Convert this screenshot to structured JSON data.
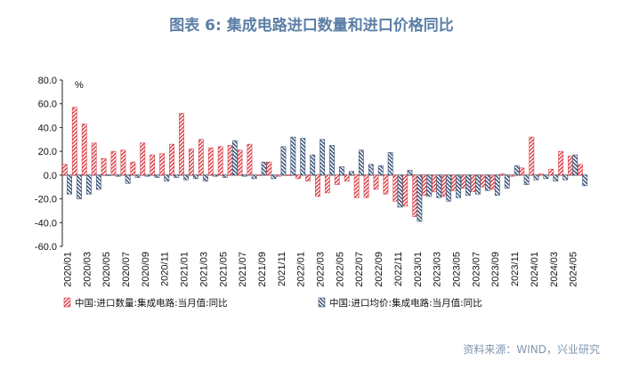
{
  "title": "图表 6:    集成电路进口数量和进口价格同比",
  "source": "资料来源：WIND，兴业研究",
  "chart_data": {
    "type": "bar",
    "unit": "%",
    "ylim": [
      -60,
      80
    ],
    "yticks": [
      "80.0",
      "60.0",
      "40.0",
      "20.0",
      "0.0",
      "-20.0",
      "-40.0",
      "-60.0"
    ],
    "categories": [
      "2020/01",
      "2020/02",
      "2020/03",
      "2020/04",
      "2020/05",
      "2020/06",
      "2020/07",
      "2020/08",
      "2020/09",
      "2020/10",
      "2020/11",
      "2020/12",
      "2021/01",
      "2021/02",
      "2021/03",
      "2021/04",
      "2021/05",
      "2021/06",
      "2021/07",
      "2021/08",
      "2021/09",
      "2021/10",
      "2021/11",
      "2021/12",
      "2022/01",
      "2022/02",
      "2022/03",
      "2022/04",
      "2022/05",
      "2022/06",
      "2022/07",
      "2022/08",
      "2022/09",
      "2022/10",
      "2022/11",
      "2022/12",
      "2023/01",
      "2023/02",
      "2023/03",
      "2023/04",
      "2023/05",
      "2023/06",
      "2023/07",
      "2023/08",
      "2023/09",
      "2023/10",
      "2023/11",
      "2023/12",
      "2024/01",
      "2024/02",
      "2024/03",
      "2024/04",
      "2024/05",
      "2024/06"
    ],
    "xtick_labels": [
      "2020/01",
      "2020/03",
      "2020/05",
      "2020/07",
      "2020/09",
      "2020/11",
      "2021/01",
      "2021/03",
      "2021/05",
      "2021/07",
      "2021/09",
      "2021/11",
      "2022/01",
      "2022/03",
      "2022/05",
      "2022/07",
      "2022/09",
      "2022/11",
      "2023/01",
      "2023/03",
      "2023/05",
      "2023/07",
      "2023/09",
      "2023/11",
      "2024/01",
      "2024/03",
      "2024/05"
    ],
    "series": [
      {
        "name": "中国:进口数量:集成电路:当月值:同比",
        "color": "#d9434b",
        "values": [
          9,
          57,
          43,
          27,
          14,
          20,
          21,
          11,
          27,
          17,
          18,
          26,
          52,
          22,
          30,
          23,
          24,
          25,
          21,
          26,
          0,
          11,
          -1,
          0,
          -3,
          -5,
          -18,
          -15,
          -8,
          -5,
          -19,
          -19,
          -12,
          -16,
          -22,
          -26,
          -35,
          -17,
          -14,
          -18,
          -13,
          -11,
          -14,
          -10,
          -12,
          1,
          -1,
          6,
          32,
          1,
          5,
          20,
          16,
          9
        ]
      },
      {
        "name": "中国:进口均价:集成电路:当月值:同比",
        "color": "#3c5577",
        "values": [
          -16,
          -20,
          -16,
          -12,
          0,
          -1,
          -7,
          -2,
          -1,
          -2,
          -5,
          -2,
          -4,
          -3,
          -5,
          -1,
          -2,
          29,
          -1,
          -3,
          11,
          -3,
          24,
          32,
          31,
          17,
          30,
          25,
          7,
          3,
          21,
          9,
          8,
          19,
          -27,
          4,
          -39,
          -18,
          -19,
          -22,
          -19,
          -17,
          -16,
          -13,
          -17,
          -11,
          8,
          -8,
          -4,
          -3,
          -5,
          -4,
          17,
          -9
        ]
      }
    ]
  }
}
